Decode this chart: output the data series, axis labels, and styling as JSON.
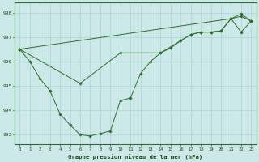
{
  "hours": [
    0,
    1,
    2,
    3,
    4,
    5,
    6,
    7,
    8,
    9,
    10,
    11,
    12,
    13,
    14,
    15,
    16,
    17,
    18,
    19,
    20,
    21,
    22,
    23
  ],
  "series1_y": [
    996.5,
    996.0,
    995.3,
    994.8,
    993.85,
    993.4,
    993.0,
    992.95,
    993.05,
    993.15,
    994.4,
    994.5,
    995.5,
    996.0,
    996.35,
    996.55,
    996.85,
    997.1,
    997.2,
    997.2,
    997.25,
    997.75,
    997.85,
    997.65
  ],
  "series2_x": [
    0,
    6,
    10,
    14,
    17,
    18,
    19,
    20,
    21,
    22,
    23
  ],
  "series2_y": [
    996.5,
    995.1,
    996.35,
    996.35,
    997.1,
    997.2,
    997.2,
    997.25,
    997.75,
    997.2,
    997.65
  ],
  "series3_x": [
    0,
    21,
    22,
    23
  ],
  "series3_y": [
    996.5,
    997.75,
    997.95,
    997.65
  ],
  "background_color": "#cce8e8",
  "grid_color": "#aad4d4",
  "line_color": "#2d6e2d",
  "title": "Graphe pression niveau de la mer (hPa)",
  "ylim_min": 992.6,
  "ylim_max": 998.4,
  "yticks": [
    993,
    994,
    995,
    996,
    997,
    998
  ],
  "xlim_min": -0.5,
  "xlim_max": 23.5,
  "figwidth": 3.2,
  "figheight": 2.0,
  "dpi": 100
}
